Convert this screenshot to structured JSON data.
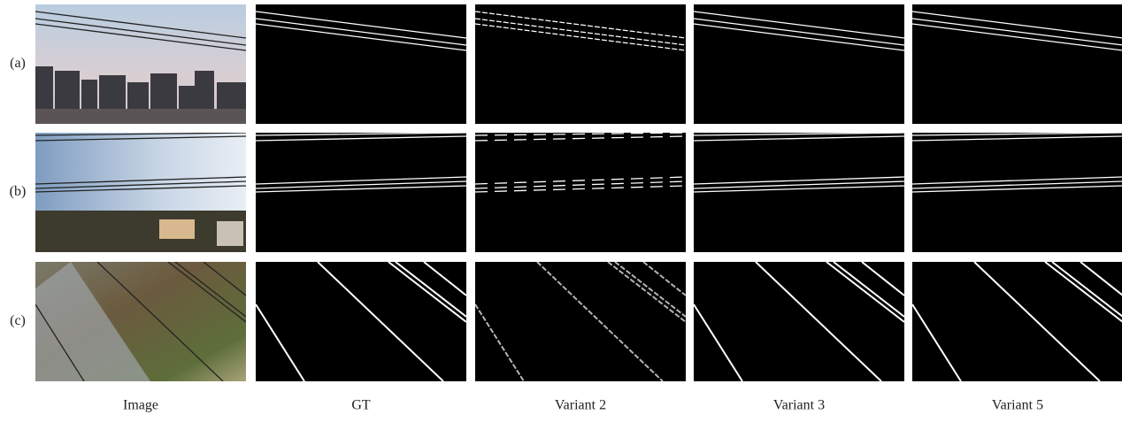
{
  "row_labels": [
    "(a)",
    "(b)",
    "(c)"
  ],
  "column_labels": [
    "Image",
    "GT",
    "Variant 2",
    "Variant 3",
    "Variant 5"
  ]
}
